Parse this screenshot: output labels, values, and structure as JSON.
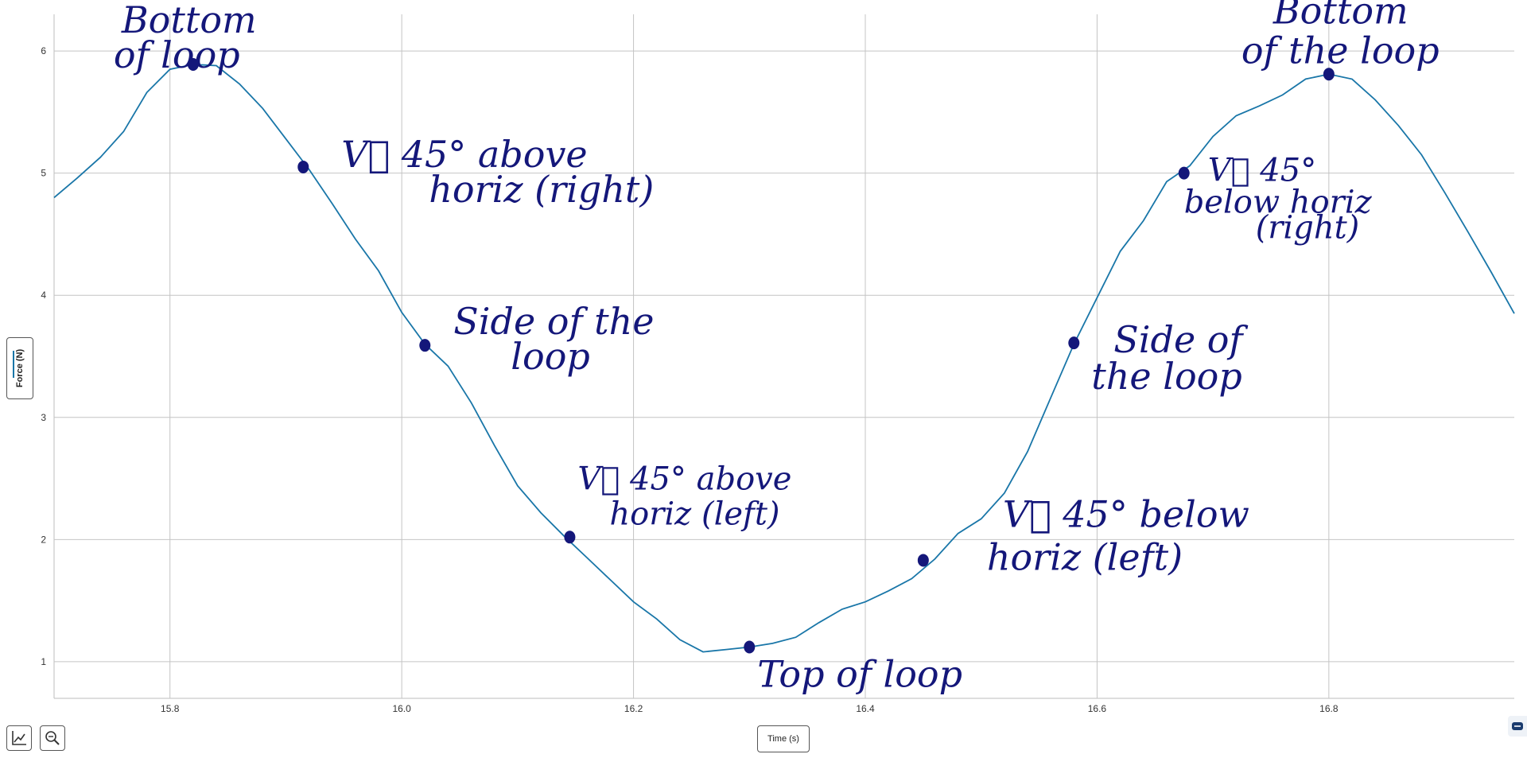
{
  "chart_data": {
    "type": "line",
    "xlabel": "Time (s)",
    "ylabel": "Force (N)",
    "xlim": [
      15.7,
      16.96
    ],
    "ylim": [
      0.7,
      6.3
    ],
    "x_ticks": [
      "15.8",
      "16.0",
      "16.2",
      "16.4",
      "16.6",
      "16.8"
    ],
    "y_ticks": [
      "1",
      "2",
      "3",
      "4",
      "5",
      "6"
    ],
    "grid": true,
    "series": [
      {
        "color": "#1976a8",
        "x": [
          15.7,
          15.72,
          15.74,
          15.76,
          15.78,
          15.8,
          15.82,
          15.84,
          15.86,
          15.88,
          15.9,
          15.92,
          15.94,
          15.96,
          15.98,
          16.0,
          16.02,
          16.04,
          16.06,
          16.08,
          16.1,
          16.12,
          16.14,
          16.16,
          16.18,
          16.2,
          16.22,
          16.24,
          16.26,
          16.28,
          16.3,
          16.32,
          16.34,
          16.36,
          16.38,
          16.4,
          16.42,
          16.44,
          16.46,
          16.48,
          16.5,
          16.52,
          16.54,
          16.56,
          16.58,
          16.6,
          16.62,
          16.64,
          16.66,
          16.68,
          16.7,
          16.72,
          16.74,
          16.76,
          16.78,
          16.8,
          16.82,
          16.84,
          16.86,
          16.88,
          16.9,
          16.92,
          16.94,
          16.96
        ],
        "values": [
          4.8,
          4.96,
          5.13,
          5.34,
          5.66,
          5.85,
          5.89,
          5.88,
          5.73,
          5.53,
          5.28,
          5.03,
          4.75,
          4.46,
          4.2,
          3.86,
          3.6,
          3.42,
          3.12,
          2.77,
          2.44,
          2.22,
          2.03,
          1.85,
          1.67,
          1.49,
          1.35,
          1.18,
          1.08,
          1.1,
          1.12,
          1.15,
          1.2,
          1.32,
          1.43,
          1.49,
          1.58,
          1.68,
          1.84,
          2.05,
          2.17,
          2.38,
          2.72,
          3.16,
          3.6,
          3.98,
          4.36,
          4.61,
          4.93,
          5.06,
          5.3,
          5.47,
          5.55,
          5.64,
          5.77,
          5.81,
          5.77,
          5.6,
          5.39,
          5.15,
          4.84,
          4.52,
          4.19,
          3.85
        ]
      }
    ],
    "annotations": [
      {
        "lines": [
          "Bottom",
          "of loop"
        ],
        "x": 15.82,
        "y": 5.89
      },
      {
        "lines": [
          "V⃗  45°  above",
          "horiz  (right)"
        ],
        "x": 15.915,
        "y": 5.05
      },
      {
        "lines": [
          "Side  of  the",
          "loop"
        ],
        "x": 16.02,
        "y": 3.59
      },
      {
        "lines": [
          "V⃗  45° above",
          "horiz (left)"
        ],
        "x": 16.145,
        "y": 2.02
      },
      {
        "lines": [
          "Top  of  loop"
        ],
        "x": 16.3,
        "y": 1.12
      },
      {
        "lines": [
          "V⃗  45°  below",
          "horiz  (left)"
        ],
        "x": 16.45,
        "y": 1.83
      },
      {
        "lines": [
          "Side  of",
          "the  loop"
        ],
        "x": 16.58,
        "y": 3.61
      },
      {
        "lines": [
          "V⃗  45°",
          "below horiz",
          "(right)"
        ],
        "x": 16.675,
        "y": 5.0
      },
      {
        "lines": [
          "Bottom",
          "of the loop"
        ],
        "x": 16.8,
        "y": 5.81
      }
    ]
  },
  "ui": {
    "y_axis_button_label": "Force (N)",
    "x_axis_button_label": "Time (s)",
    "axes_tool_icon": "axes-icon",
    "zoom_tool_icon": "zoom-icon",
    "corner_icon": "expand-icon",
    "ink_color": "#14177a"
  }
}
